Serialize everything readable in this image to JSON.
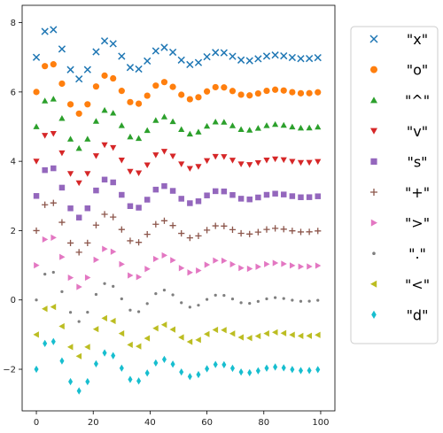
{
  "chart_data": {
    "type": "scatter",
    "title": "",
    "xlabel": "",
    "ylabel": "",
    "xlim": [
      -5,
      105
    ],
    "ylim": [
      -3.2,
      8.5
    ],
    "grid": false,
    "legend_position": "right",
    "x": [
      0,
      3,
      6,
      9,
      12,
      15,
      18,
      21,
      24,
      27,
      30,
      33,
      36,
      39,
      42,
      45,
      48,
      51,
      54,
      57,
      60,
      63,
      66,
      69,
      72,
      75,
      78,
      81,
      84,
      87,
      90,
      93,
      96,
      99
    ],
    "xticks": [
      "0",
      "20",
      "40",
      "60",
      "80",
      "100"
    ],
    "yticks": [
      "−2",
      "0",
      "2",
      "4",
      "6",
      "8"
    ],
    "base": [
      0.0,
      0.745,
      0.798,
      0.24,
      -0.357,
      -0.624,
      -0.356,
      0.158,
      0.472,
      0.392,
      0.032,
      -0.293,
      -0.338,
      -0.107,
      0.183,
      0.285,
      0.147,
      -0.08,
      -0.209,
      -0.152,
      0.015,
      0.138,
      0.131,
      0.028,
      -0.079,
      -0.099,
      -0.043,
      0.033,
      0.066,
      0.042,
      -0.006,
      -0.038,
      -0.035,
      -0.01
    ],
    "series": [
      {
        "name": "\"x\"",
        "marker": "x",
        "offset": 7,
        "color": "#1f77b4"
      },
      {
        "name": "\"o\"",
        "marker": "o",
        "offset": 6,
        "color": "#ff7f0e"
      },
      {
        "name": "\"^\"",
        "marker": "^",
        "offset": 5,
        "color": "#2ca02c"
      },
      {
        "name": "\"v\"",
        "marker": "v",
        "offset": 4,
        "color": "#d62728"
      },
      {
        "name": "\"s\"",
        "marker": "s",
        "offset": 3,
        "color": "#9467bd"
      },
      {
        "name": "\"+\"",
        "marker": "+",
        "offset": 2,
        "color": "#8c564b"
      },
      {
        "name": "\">\"",
        "marker": ">",
        "offset": 1,
        "color": "#e377c2"
      },
      {
        "name": "\".\"",
        "marker": ".",
        "offset": 0,
        "color": "#7f7f7f"
      },
      {
        "name": "\"<\"",
        "marker": "<",
        "offset": -1,
        "color": "#bcbd22"
      },
      {
        "name": "\"d\"",
        "marker": "d",
        "offset": -2,
        "color": "#17becf"
      }
    ]
  }
}
